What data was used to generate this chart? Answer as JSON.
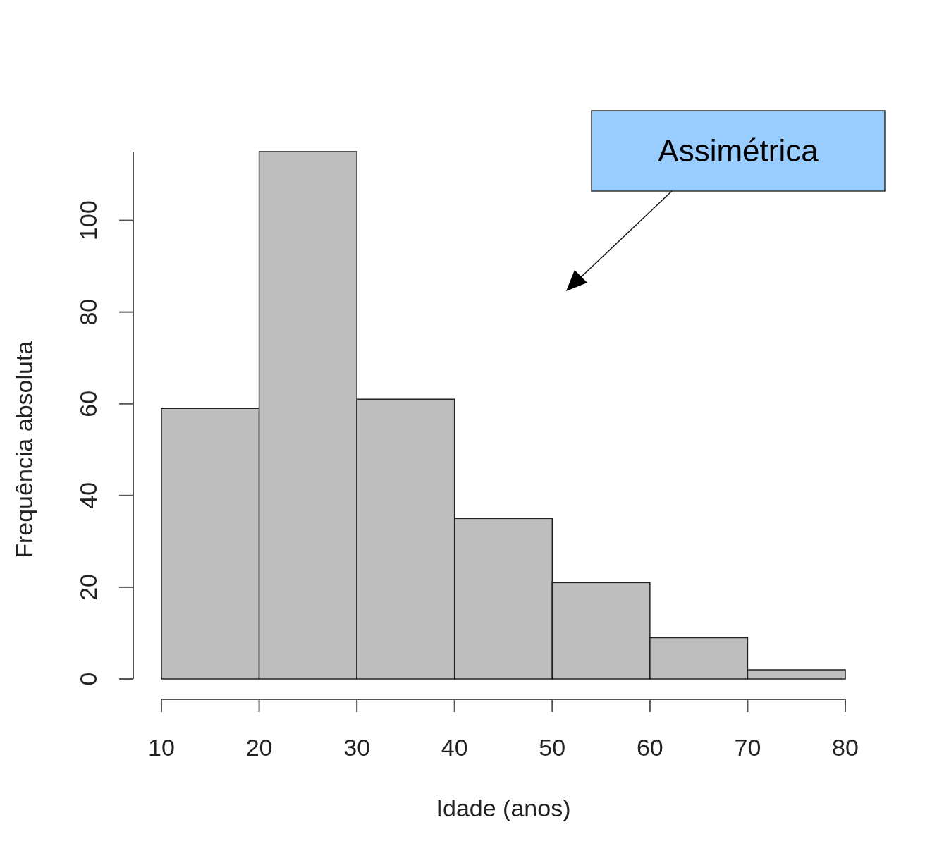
{
  "chart_data": {
    "type": "histogram",
    "xlabel": "Idade (anos)",
    "ylabel": "Frequência absoluta",
    "bins": [
      10,
      20,
      30,
      40,
      50,
      60,
      70,
      80
    ],
    "values": [
      59,
      115,
      61,
      35,
      21,
      9,
      2
    ],
    "color": "#bebebe",
    "xlim": [
      10,
      80
    ],
    "xticks": [
      10,
      20,
      30,
      40,
      50,
      60,
      70,
      80
    ],
    "ylim": [
      0,
      115
    ],
    "yticks": [
      0,
      20,
      40,
      60,
      80,
      100
    ],
    "annotations": [
      "Assimétrica"
    ]
  }
}
